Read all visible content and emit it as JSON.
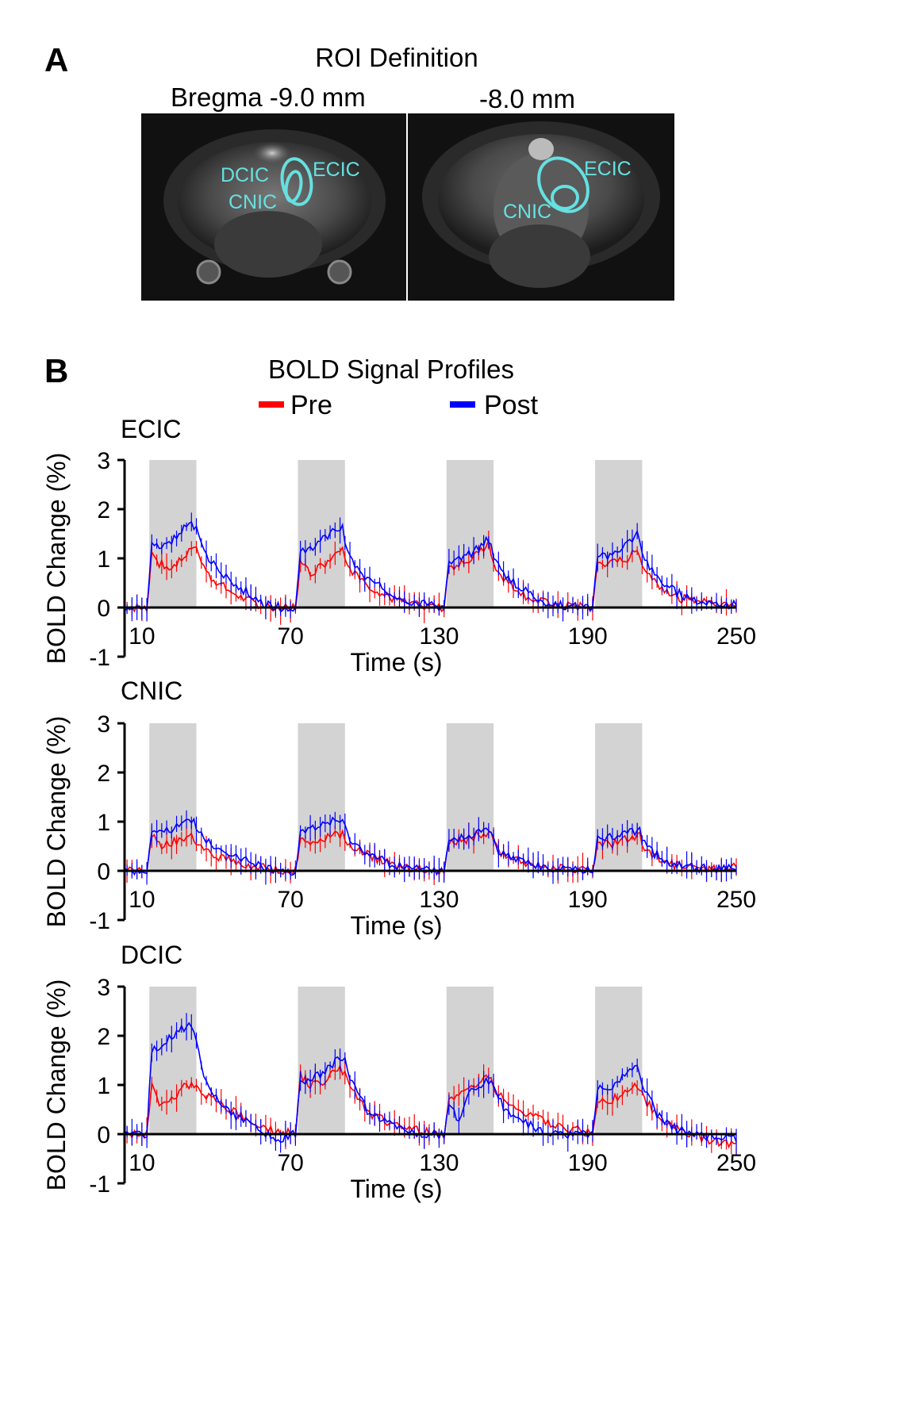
{
  "panel_a": {
    "letter": "A",
    "title": "ROI Definition",
    "left_caption": "Bregma -9.0 mm",
    "right_caption": "-8.0 mm",
    "left_roi_labels": [
      "DCIC",
      "ECIC",
      "CNIC"
    ],
    "right_roi_labels": [
      "ECIC",
      "CNIC"
    ],
    "roi_color": "#66e0e0"
  },
  "panel_b": {
    "letter": "B",
    "title": "BOLD Signal Profiles",
    "legend": [
      {
        "name": "Pre",
        "color": "#ff0000"
      },
      {
        "name": "Post",
        "color": "#0000ff"
      }
    ]
  },
  "chart_data": [
    {
      "type": "line",
      "title": "ECIC",
      "xlabel": "Time (s)",
      "ylabel": "BOLD Change (%)",
      "xlim": [
        3,
        250
      ],
      "ylim": [
        -1,
        3
      ],
      "xticks": [
        10,
        70,
        130,
        190,
        250
      ],
      "yticks": [
        -1,
        0,
        1,
        2,
        3
      ],
      "stim_blocks": [
        [
          13,
          32
        ],
        [
          73,
          92
        ],
        [
          133,
          152
        ],
        [
          193,
          212
        ]
      ],
      "series": [
        {
          "name": "Pre",
          "color": "#ff0000",
          "keypoints": [
            [
              3,
              0
            ],
            [
              12,
              0
            ],
            [
              14,
              1.1
            ],
            [
              17,
              0.9
            ],
            [
              22,
              0.8
            ],
            [
              27,
              1.0
            ],
            [
              31,
              1.3
            ],
            [
              33,
              1.0
            ],
            [
              38,
              0.6
            ],
            [
              45,
              0.35
            ],
            [
              52,
              0.15
            ],
            [
              58,
              0.05
            ],
            [
              66,
              0
            ],
            [
              72,
              0
            ],
            [
              74,
              0.9
            ],
            [
              78,
              0.7
            ],
            [
              84,
              0.9
            ],
            [
              89,
              1.2
            ],
            [
              91,
              1.2
            ],
            [
              94,
              0.8
            ],
            [
              100,
              0.5
            ],
            [
              110,
              0.2
            ],
            [
              120,
              0.05
            ],
            [
              132,
              0
            ],
            [
              134,
              0.8
            ],
            [
              140,
              0.9
            ],
            [
              146,
              1.1
            ],
            [
              150,
              1.3
            ],
            [
              153,
              0.8
            ],
            [
              158,
              0.5
            ],
            [
              166,
              0.2
            ],
            [
              176,
              0.05
            ],
            [
              192,
              0
            ],
            [
              194,
              0.9
            ],
            [
              200,
              0.9
            ],
            [
              206,
              1.0
            ],
            [
              210,
              1.15
            ],
            [
              213,
              0.8
            ],
            [
              218,
              0.5
            ],
            [
              226,
              0.2
            ],
            [
              236,
              0.1
            ],
            [
              250,
              0.1
            ]
          ]
        },
        {
          "name": "Post",
          "color": "#0000ff",
          "keypoints": [
            [
              3,
              0
            ],
            [
              12,
              0
            ],
            [
              14,
              1.3
            ],
            [
              17,
              1.2
            ],
            [
              21,
              1.3
            ],
            [
              26,
              1.6
            ],
            [
              30,
              1.75
            ],
            [
              32,
              1.6
            ],
            [
              35,
              1.1
            ],
            [
              42,
              0.7
            ],
            [
              50,
              0.4
            ],
            [
              58,
              0.1
            ],
            [
              66,
              0
            ],
            [
              72,
              0
            ],
            [
              74,
              1.1
            ],
            [
              78,
              1.2
            ],
            [
              84,
              1.4
            ],
            [
              88,
              1.6
            ],
            [
              91,
              1.6
            ],
            [
              94,
              1.0
            ],
            [
              100,
              0.6
            ],
            [
              110,
              0.3
            ],
            [
              120,
              0.1
            ],
            [
              132,
              0
            ],
            [
              134,
              0.9
            ],
            [
              140,
              1.0
            ],
            [
              146,
              1.2
            ],
            [
              150,
              1.4
            ],
            [
              153,
              0.9
            ],
            [
              158,
              0.6
            ],
            [
              166,
              0.3
            ],
            [
              176,
              0.05
            ],
            [
              192,
              0
            ],
            [
              194,
              1.0
            ],
            [
              200,
              1.1
            ],
            [
              206,
              1.3
            ],
            [
              210,
              1.5
            ],
            [
              213,
              1.0
            ],
            [
              218,
              0.6
            ],
            [
              226,
              0.3
            ],
            [
              236,
              0.1
            ],
            [
              250,
              0.05
            ]
          ]
        }
      ]
    },
    {
      "type": "line",
      "title": "CNIC",
      "xlabel": "Time (s)",
      "ylabel": "BOLD Change (%)",
      "xlim": [
        3,
        250
      ],
      "ylim": [
        -1,
        3
      ],
      "xticks": [
        10,
        70,
        130,
        190,
        250
      ],
      "yticks": [
        -1,
        0,
        1,
        2,
        3
      ],
      "stim_blocks": [
        [
          13,
          32
        ],
        [
          73,
          92
        ],
        [
          133,
          152
        ],
        [
          193,
          212
        ]
      ],
      "series": [
        {
          "name": "Pre",
          "color": "#ff0000",
          "keypoints": [
            [
              3,
              0
            ],
            [
              12,
              0
            ],
            [
              14,
              0.7
            ],
            [
              18,
              0.5
            ],
            [
              24,
              0.6
            ],
            [
              30,
              0.75
            ],
            [
              33,
              0.5
            ],
            [
              40,
              0.3
            ],
            [
              50,
              0.15
            ],
            [
              60,
              0.05
            ],
            [
              72,
              0
            ],
            [
              74,
              0.6
            ],
            [
              80,
              0.6
            ],
            [
              86,
              0.7
            ],
            [
              91,
              0.75
            ],
            [
              94,
              0.5
            ],
            [
              102,
              0.3
            ],
            [
              112,
              0.1
            ],
            [
              132,
              0
            ],
            [
              134,
              0.6
            ],
            [
              140,
              0.6
            ],
            [
              146,
              0.75
            ],
            [
              151,
              0.8
            ],
            [
              154,
              0.4
            ],
            [
              162,
              0.2
            ],
            [
              176,
              0.05
            ],
            [
              192,
              0
            ],
            [
              194,
              0.6
            ],
            [
              200,
              0.55
            ],
            [
              206,
              0.65
            ],
            [
              211,
              0.7
            ],
            [
              214,
              0.4
            ],
            [
              222,
              0.15
            ],
            [
              236,
              0
            ],
            [
              250,
              0.1
            ]
          ]
        },
        {
          "name": "Post",
          "color": "#0000ff",
          "keypoints": [
            [
              3,
              0
            ],
            [
              12,
              0
            ],
            [
              14,
              0.8
            ],
            [
              18,
              0.75
            ],
            [
              24,
              0.9
            ],
            [
              29,
              1.1
            ],
            [
              32,
              0.9
            ],
            [
              36,
              0.6
            ],
            [
              44,
              0.4
            ],
            [
              54,
              0.15
            ],
            [
              64,
              0
            ],
            [
              72,
              0
            ],
            [
              74,
              0.8
            ],
            [
              80,
              0.9
            ],
            [
              86,
              1.0
            ],
            [
              91,
              1.0
            ],
            [
              94,
              0.6
            ],
            [
              102,
              0.35
            ],
            [
              112,
              0.1
            ],
            [
              132,
              0
            ],
            [
              134,
              0.6
            ],
            [
              140,
              0.7
            ],
            [
              146,
              0.8
            ],
            [
              151,
              0.8
            ],
            [
              154,
              0.4
            ],
            [
              162,
              0.2
            ],
            [
              176,
              0.05
            ],
            [
              192,
              0
            ],
            [
              194,
              0.7
            ],
            [
              200,
              0.7
            ],
            [
              206,
              0.8
            ],
            [
              211,
              0.8
            ],
            [
              214,
              0.45
            ],
            [
              222,
              0.2
            ],
            [
              236,
              0.05
            ],
            [
              250,
              0.05
            ]
          ]
        }
      ]
    },
    {
      "type": "line",
      "title": "DCIC",
      "xlabel": "Time (s)",
      "ylabel": "BOLD Change (%)",
      "xlim": [
        3,
        250
      ],
      "ylim": [
        -1,
        3
      ],
      "xticks": [
        10,
        70,
        130,
        190,
        250
      ],
      "yticks": [
        -1,
        0,
        1,
        2,
        3
      ],
      "stim_blocks": [
        [
          13,
          32
        ],
        [
          73,
          92
        ],
        [
          133,
          152
        ],
        [
          193,
          212
        ]
      ],
      "series": [
        {
          "name": "Pre",
          "color": "#ff0000",
          "keypoints": [
            [
              3,
              0
            ],
            [
              12,
              0
            ],
            [
              14,
              1.1
            ],
            [
              17,
              0.6
            ],
            [
              22,
              0.7
            ],
            [
              27,
              1.0
            ],
            [
              32,
              1.0
            ],
            [
              36,
              0.8
            ],
            [
              44,
              0.5
            ],
            [
              52,
              0.35
            ],
            [
              60,
              0.1
            ],
            [
              72,
              0
            ],
            [
              74,
              1.2
            ],
            [
              78,
              1.0
            ],
            [
              84,
              1.1
            ],
            [
              89,
              1.3
            ],
            [
              92,
              1.3
            ],
            [
              95,
              0.9
            ],
            [
              102,
              0.4
            ],
            [
              112,
              0.2
            ],
            [
              122,
              0.1
            ],
            [
              132,
              0
            ],
            [
              134,
              0.7
            ],
            [
              140,
              0.8
            ],
            [
              146,
              1.1
            ],
            [
              150,
              1.2
            ],
            [
              153,
              0.9
            ],
            [
              158,
              0.6
            ],
            [
              166,
              0.4
            ],
            [
              176,
              0.2
            ],
            [
              192,
              0
            ],
            [
              194,
              0.7
            ],
            [
              200,
              0.7
            ],
            [
              206,
              0.9
            ],
            [
              210,
              1.0
            ],
            [
              213,
              0.7
            ],
            [
              218,
              0.4
            ],
            [
              226,
              0.1
            ],
            [
              236,
              -0.1
            ],
            [
              250,
              -0.2
            ]
          ]
        },
        {
          "name": "Post",
          "color": "#0000ff",
          "keypoints": [
            [
              3,
              0
            ],
            [
              12,
              0
            ],
            [
              14,
              1.7
            ],
            [
              18,
              1.8
            ],
            [
              24,
              2.1
            ],
            [
              29,
              2.2
            ],
            [
              32,
              1.9
            ],
            [
              35,
              1.1
            ],
            [
              42,
              0.6
            ],
            [
              50,
              0.3
            ],
            [
              58,
              0.05
            ],
            [
              66,
              -0.1
            ],
            [
              72,
              0
            ],
            [
              74,
              1.1
            ],
            [
              78,
              1.1
            ],
            [
              84,
              1.3
            ],
            [
              89,
              1.5
            ],
            [
              92,
              1.5
            ],
            [
              95,
              1.0
            ],
            [
              102,
              0.4
            ],
            [
              112,
              0.2
            ],
            [
              122,
              0
            ],
            [
              132,
              0
            ],
            [
              134,
              0.6
            ],
            [
              138,
              0.3
            ],
            [
              142,
              0.8
            ],
            [
              146,
              1.0
            ],
            [
              150,
              1.1
            ],
            [
              153,
              0.8
            ],
            [
              158,
              0.4
            ],
            [
              166,
              0.2
            ],
            [
              176,
              0
            ],
            [
              192,
              0
            ],
            [
              194,
              0.9
            ],
            [
              200,
              1.0
            ],
            [
              206,
              1.2
            ],
            [
              210,
              1.4
            ],
            [
              213,
              0.9
            ],
            [
              218,
              0.4
            ],
            [
              226,
              0.1
            ],
            [
              236,
              -0.05
            ],
            [
              250,
              -0.1
            ]
          ]
        }
      ]
    }
  ]
}
